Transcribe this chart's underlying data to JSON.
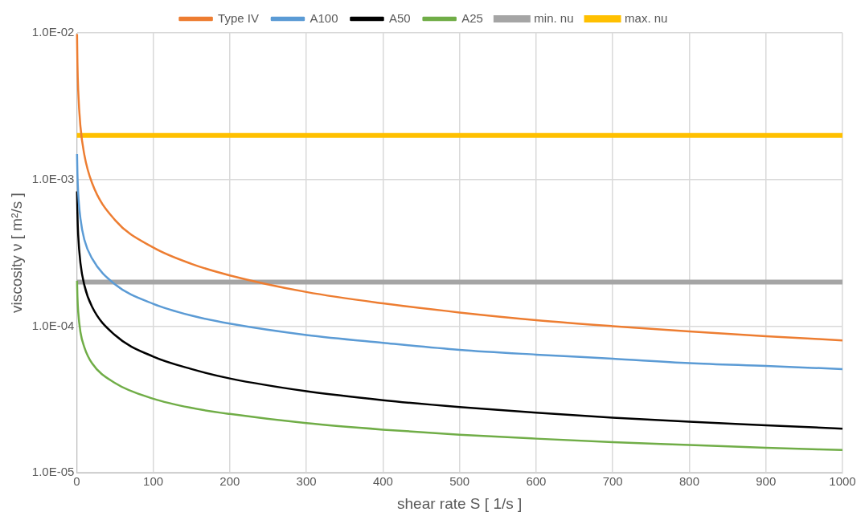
{
  "chart_data": {
    "type": "line",
    "xlabel": "shear rate S [ 1/s ]",
    "ylabel": "viscosity ν [ m²/s ]",
    "log": "y",
    "grid": true,
    "legend": "top",
    "marker": "none",
    "line_style": "solid",
    "xlim": [
      0,
      1000
    ],
    "xticks": [
      0,
      100,
      200,
      300,
      400,
      500,
      600,
      700,
      800,
      900,
      1000
    ],
    "ylim": [
      1e-05,
      0.01
    ],
    "yticks": [
      {
        "value": 1e-05,
        "label": "1.0E-05"
      },
      {
        "value": 0.0001,
        "label": "1.0E-04"
      },
      {
        "value": 0.001,
        "label": "1.0E-03"
      },
      {
        "value": 0.01,
        "label": "1.0E-02"
      }
    ],
    "x": [
      0.5,
      1,
      2,
      5,
      10,
      20,
      50,
      100,
      150,
      200,
      300,
      400,
      500,
      600,
      700,
      800,
      900,
      1000
    ],
    "series": [
      {
        "name": "Type IV",
        "color": "#ed7d31",
        "values": [
          0.0098,
          0.0063,
          0.00409,
          0.00229,
          0.00148,
          0.00095,
          0.00053,
          0.000344,
          0.000266,
          0.000222,
          0.000171,
          0.000143,
          0.000124,
          0.00011,
          0.0001,
          9.2e-05,
          8.55e-05,
          8e-05
        ]
      },
      {
        "name": "A100",
        "color": "#5b9bd5",
        "values": [
          0.00149,
          0.0011,
          0.00081,
          0.00054,
          0.00039,
          0.00029,
          0.000193,
          0.000142,
          0.000118,
          0.000104,
          8.7e-05,
          7.7e-05,
          6.9e-05,
          6.4e-05,
          6e-05,
          5.6e-05,
          5.35e-05,
          5.1e-05
        ]
      },
      {
        "name": "A50",
        "color": "#000000",
        "values": [
          0.00083,
          0.00059,
          0.00042,
          0.000268,
          0.000191,
          0.000136,
          8.7e-05,
          6.2e-05,
          5.1e-05,
          4.4e-05,
          3.6e-05,
          3.13e-05,
          2.81e-05,
          2.57e-05,
          2.38e-05,
          2.23e-05,
          2.11e-05,
          2e-05
        ]
      },
      {
        "name": "A25",
        "color": "#70ad47",
        "values": [
          0.000204,
          0.00016,
          0.000126,
          9.1e-05,
          7.2e-05,
          5.6e-05,
          4.1e-05,
          3.2e-05,
          2.77e-05,
          2.52e-05,
          2.18e-05,
          1.97e-05,
          1.82e-05,
          1.71e-05,
          1.62e-05,
          1.55e-05,
          1.48e-05,
          1.43e-05
        ]
      }
    ],
    "ref_lines": [
      {
        "axis": "y",
        "value": 0.0002,
        "label": "min. nu",
        "color": "#a5a5a5"
      },
      {
        "axis": "y",
        "value": 0.002,
        "label": "max. nu",
        "color": "#ffc000"
      }
    ]
  }
}
